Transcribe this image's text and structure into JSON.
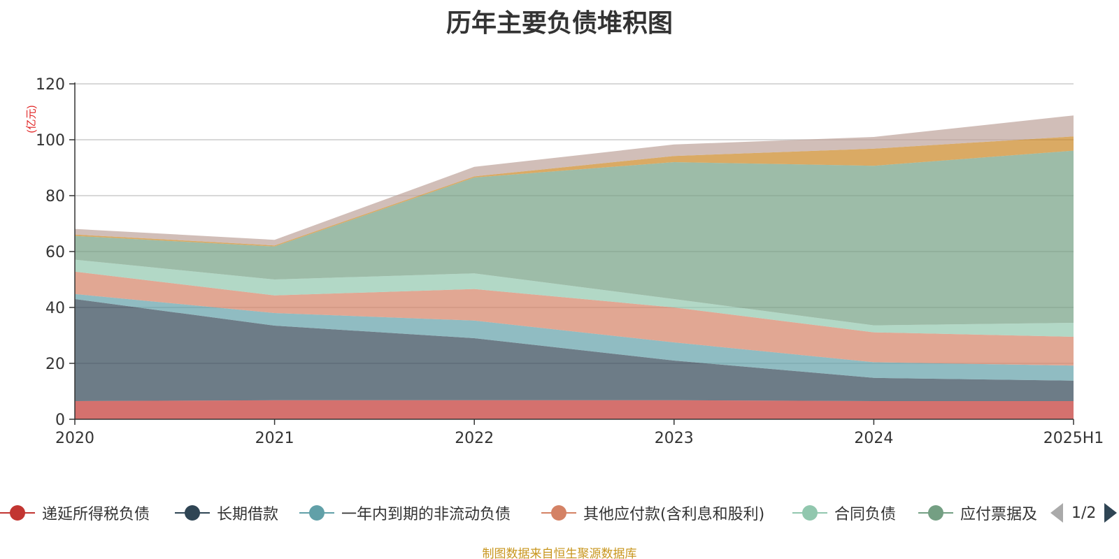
{
  "chart_data": {
    "type": "area",
    "stacked": true,
    "title": "历年主要负债堆积图",
    "ylabel": "(亿元)",
    "x": [
      "2020",
      "2021",
      "2022",
      "2023",
      "2024",
      "2025H1"
    ],
    "ylim": [
      0,
      120
    ],
    "yticks": [
      0,
      20,
      40,
      60,
      80,
      100,
      120
    ],
    "grid": true,
    "legend_position": "bottom",
    "legend_page": "1/2",
    "series": [
      {
        "name": "递延所得税负债",
        "color": "#c23531",
        "values": [
          6.5,
          6.8,
          6.8,
          6.8,
          6.5,
          6.5
        ]
      },
      {
        "name": "长期借款",
        "color": "#2f4554",
        "values": [
          36.5,
          26.7,
          22.2,
          14.2,
          8.3,
          7.3
        ]
      },
      {
        "name": "一年内到期的非流动负债",
        "color": "#61a0a8",
        "values": [
          1.8,
          4.5,
          6.3,
          6.5,
          5.6,
          5.4
        ]
      },
      {
        "name": "其他应付款(含利息和股利)",
        "color": "#d48265",
        "values": [
          8.0,
          6.3,
          11.3,
          12.5,
          10.7,
          10.3
        ]
      },
      {
        "name": "合同负债",
        "color": "#91c7ae",
        "values": [
          4.3,
          5.7,
          5.6,
          3.0,
          2.5,
          5.0
        ]
      },
      {
        "name": "应付票据及应付账款",
        "color": "#749f83",
        "values": [
          8.5,
          11.8,
          34.3,
          49.0,
          57.1,
          61.6
        ]
      },
      {
        "name": "",
        "color": "#ca8622",
        "values": [
          0.5,
          0.4,
          0.4,
          2.2,
          6.1,
          5.1
        ]
      },
      {
        "name": "",
        "color": "#bda29a",
        "values": [
          2.0,
          2.0,
          3.4,
          4.1,
          4.2,
          7.5
        ]
      }
    ],
    "legend_visible_labels": [
      "递延所得税负债",
      "长期借款",
      "一年内到期的非流动负债",
      "其他应付款(含利息和股利)",
      "合同负债",
      "应付票据及"
    ]
  },
  "source_note": "制图数据来自恒生聚源数据库"
}
